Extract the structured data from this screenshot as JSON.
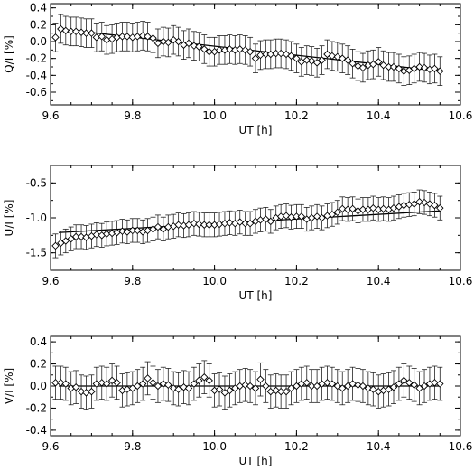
{
  "chart_data": [
    {
      "type": "scatter",
      "xlabel": "UT [h]",
      "ylabel": "Q/I [%]",
      "xlim": [
        9.6,
        10.6
      ],
      "ylim": [
        -0.75,
        0.45
      ],
      "xticks": [
        "9.6",
        "9.8",
        "10.0",
        "10.2",
        "10.4",
        "10.6"
      ],
      "yticks": [
        {
          "v": 0.4,
          "l": "0.4"
        },
        {
          "v": 0.2,
          "l": "0.2"
        },
        {
          "v": 0.0,
          "l": "0.0"
        },
        {
          "v": -0.2,
          "l": "-0.2"
        },
        {
          "v": -0.4,
          "l": "-0.4"
        },
        {
          "v": -0.6,
          "l": "-0.6"
        }
      ],
      "error": 0.17,
      "fit": {
        "x": [
          9.62,
          10.55
        ],
        "y": [
          0.15,
          -0.35
        ]
      },
      "x": [
        9.612,
        9.625,
        9.637,
        9.65,
        9.662,
        9.675,
        9.687,
        9.7,
        9.712,
        9.725,
        9.737,
        9.75,
        9.762,
        9.775,
        9.787,
        9.8,
        9.812,
        9.825,
        9.837,
        9.85,
        9.862,
        9.875,
        9.887,
        9.9,
        9.912,
        9.925,
        9.937,
        9.95,
        9.962,
        9.975,
        9.987,
        10.0,
        10.012,
        10.025,
        10.037,
        10.05,
        10.062,
        10.075,
        10.087,
        10.1,
        10.112,
        10.125,
        10.137,
        10.15,
        10.162,
        10.175,
        10.187,
        10.2,
        10.212,
        10.225,
        10.237,
        10.25,
        10.262,
        10.275,
        10.287,
        10.3,
        10.312,
        10.325,
        10.337,
        10.35,
        10.362,
        10.375,
        10.387,
        10.4,
        10.412,
        10.425,
        10.437,
        10.45,
        10.462,
        10.475,
        10.487,
        10.5,
        10.512,
        10.525,
        10.537,
        10.55
      ],
      "y": [
        0.05,
        0.15,
        0.13,
        0.12,
        0.12,
        0.11,
        0.1,
        0.1,
        0.05,
        0.06,
        0.02,
        0.03,
        0.05,
        0.06,
        0.06,
        0.05,
        0.06,
        0.07,
        0.06,
        0.04,
        -0.02,
        0.0,
        -0.01,
        0.02,
        0.0,
        -0.04,
        -0.02,
        -0.05,
        -0.06,
        -0.09,
        -0.12,
        -0.12,
        -0.1,
        -0.1,
        -0.09,
        -0.1,
        -0.09,
        -0.1,
        -0.12,
        -0.2,
        -0.16,
        -0.15,
        -0.15,
        -0.14,
        -0.14,
        -0.15,
        -0.17,
        -0.2,
        -0.24,
        -0.22,
        -0.23,
        -0.25,
        -0.22,
        -0.15,
        -0.17,
        -0.18,
        -0.2,
        -0.22,
        -0.26,
        -0.29,
        -0.31,
        -0.28,
        -0.27,
        -0.24,
        -0.28,
        -0.3,
        -0.3,
        -0.32,
        -0.35,
        -0.34,
        -0.32,
        -0.3,
        -0.31,
        -0.33,
        -0.32,
        -0.35
      ]
    },
    {
      "type": "scatter",
      "xlabel": "UT [h]",
      "ylabel": "U/I [%]",
      "xlim": [
        9.6,
        10.6
      ],
      "ylim": [
        -1.75,
        -0.25
      ],
      "xticks": [
        "9.6",
        "9.8",
        "10.0",
        "10.2",
        "10.4",
        "10.6"
      ],
      "yticks": [
        {
          "v": -0.5,
          "l": "-0.5"
        },
        {
          "v": -1.0,
          "l": "-1.0"
        },
        {
          "v": -1.5,
          "l": "-1.5"
        }
      ],
      "error": 0.17,
      "fit": {
        "x": [
          9.62,
          10.55
        ],
        "y": [
          -1.21,
          -0.9
        ]
      },
      "x": [
        9.612,
        9.625,
        9.637,
        9.65,
        9.662,
        9.675,
        9.687,
        9.7,
        9.712,
        9.725,
        9.737,
        9.75,
        9.762,
        9.775,
        9.787,
        9.8,
        9.812,
        9.825,
        9.837,
        9.85,
        9.862,
        9.875,
        9.887,
        9.9,
        9.912,
        9.925,
        9.937,
        9.95,
        9.962,
        9.975,
        9.987,
        10.0,
        10.012,
        10.025,
        10.037,
        10.05,
        10.062,
        10.075,
        10.087,
        10.1,
        10.112,
        10.125,
        10.137,
        10.15,
        10.162,
        10.175,
        10.187,
        10.2,
        10.212,
        10.225,
        10.237,
        10.25,
        10.262,
        10.275,
        10.287,
        10.3,
        10.312,
        10.325,
        10.337,
        10.35,
        10.362,
        10.375,
        10.387,
        10.4,
        10.412,
        10.425,
        10.437,
        10.45,
        10.462,
        10.475,
        10.487,
        10.5,
        10.512,
        10.525,
        10.537,
        10.55
      ],
      "y": [
        -1.4,
        -1.36,
        -1.33,
        -1.3,
        -1.27,
        -1.27,
        -1.28,
        -1.26,
        -1.24,
        -1.25,
        -1.23,
        -1.22,
        -1.21,
        -1.19,
        -1.2,
        -1.18,
        -1.18,
        -1.2,
        -1.18,
        -1.16,
        -1.13,
        -1.16,
        -1.13,
        -1.12,
        -1.1,
        -1.11,
        -1.1,
        -1.08,
        -1.09,
        -1.1,
        -1.1,
        -1.1,
        -1.09,
        -1.08,
        -1.07,
        -1.08,
        -1.06,
        -1.08,
        -1.08,
        -1.05,
        -1.03,
        -1.02,
        -1.05,
        -1.0,
        -0.98,
        -0.97,
        -0.99,
        -0.98,
        -0.98,
        -1.02,
        -1.0,
        -0.98,
        -1.0,
        -0.97,
        -0.95,
        -0.92,
        -0.87,
        -0.88,
        -0.87,
        -0.9,
        -0.88,
        -0.88,
        -0.86,
        -0.88,
        -0.87,
        -0.88,
        -0.86,
        -0.84,
        -0.82,
        -0.81,
        -0.8,
        -0.77,
        -0.78,
        -0.8,
        -0.82,
        -0.86
      ]
    },
    {
      "type": "scatter",
      "xlabel": "UT [h]",
      "ylabel": "V/I [%]",
      "xlim": [
        9.6,
        10.6
      ],
      "ylim": [
        -0.45,
        0.45
      ],
      "xticks": [
        "9.6",
        "9.8",
        "10.0",
        "10.2",
        "10.4",
        "10.6"
      ],
      "yticks": [
        {
          "v": 0.4,
          "l": "0.4"
        },
        {
          "v": 0.2,
          "l": "0.2"
        },
        {
          "v": 0.0,
          "l": "0.0"
        },
        {
          "v": -0.2,
          "l": "-0.2"
        },
        {
          "v": -0.4,
          "l": "-0.4"
        }
      ],
      "error": 0.15,
      "fit": {
        "x": [
          9.62,
          10.55
        ],
        "y": [
          0.0,
          0.0
        ]
      },
      "x": [
        9.612,
        9.625,
        9.637,
        9.65,
        9.662,
        9.675,
        9.687,
        9.7,
        9.712,
        9.725,
        9.737,
        9.75,
        9.762,
        9.775,
        9.787,
        9.8,
        9.812,
        9.825,
        9.837,
        9.85,
        9.862,
        9.875,
        9.887,
        9.9,
        9.912,
        9.925,
        9.937,
        9.95,
        9.962,
        9.975,
        9.987,
        10.0,
        10.012,
        10.025,
        10.037,
        10.05,
        10.062,
        10.075,
        10.087,
        10.1,
        10.112,
        10.125,
        10.137,
        10.15,
        10.162,
        10.175,
        10.187,
        10.2,
        10.212,
        10.225,
        10.237,
        10.25,
        10.262,
        10.275,
        10.287,
        10.3,
        10.312,
        10.325,
        10.337,
        10.35,
        10.362,
        10.375,
        10.387,
        10.4,
        10.412,
        10.425,
        10.437,
        10.45,
        10.462,
        10.475,
        10.487,
        10.5,
        10.512,
        10.525,
        10.537,
        10.55
      ],
      "y": [
        0.03,
        0.03,
        0.02,
        -0.02,
        -0.01,
        -0.05,
        -0.06,
        -0.05,
        0.02,
        0.03,
        0.02,
        0.05,
        0.03,
        -0.04,
        -0.03,
        -0.02,
        0.0,
        0.02,
        0.07,
        0.03,
        0.0,
        0.02,
        0.01,
        -0.02,
        -0.03,
        -0.01,
        -0.02,
        0.02,
        0.05,
        0.08,
        0.05,
        -0.04,
        -0.03,
        -0.06,
        -0.04,
        -0.02,
        0.0,
        0.01,
        0.0,
        -0.02,
        0.06,
        0.0,
        -0.05,
        -0.04,
        -0.05,
        -0.05,
        -0.02,
        0.0,
        0.02,
        0.03,
        0.0,
        0.0,
        0.02,
        0.03,
        0.02,
        0.0,
        -0.02,
        0.0,
        0.02,
        0.01,
        0.0,
        -0.02,
        -0.03,
        -0.05,
        -0.04,
        -0.03,
        -0.01,
        0.02,
        0.05,
        0.03,
        0.01,
        -0.02,
        0.0,
        0.02,
        0.03,
        0.02
      ]
    }
  ]
}
